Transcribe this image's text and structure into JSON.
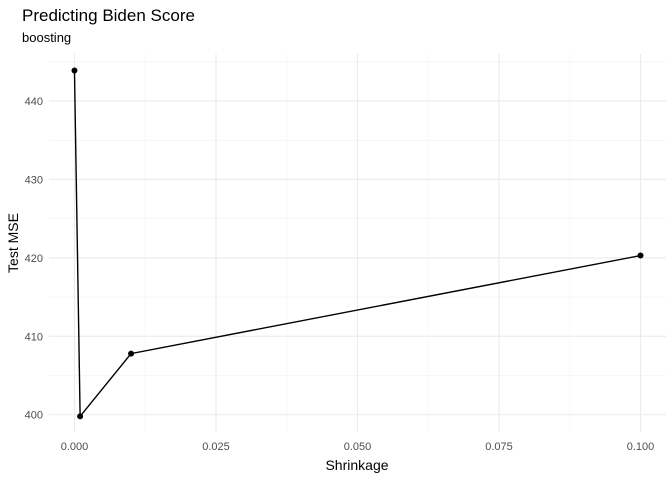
{
  "chart_data": {
    "type": "line",
    "title": "Predicting Biden Score",
    "subtitle": "boosting",
    "xlabel": "Shrinkage",
    "ylabel": "Test MSE",
    "xlim": [
      -0.0045,
      0.1045
    ],
    "ylim": [
      397.8,
      446.0
    ],
    "x_ticks": [
      0.0,
      0.025,
      0.05,
      0.075,
      0.1
    ],
    "x_tick_labels": [
      "0.000",
      "0.025",
      "0.050",
      "0.075",
      "0.100"
    ],
    "y_ticks": [
      400,
      410,
      420,
      430,
      440
    ],
    "y_tick_labels": [
      "400",
      "410",
      "420",
      "430",
      "440"
    ],
    "grid": true,
    "legend": "none",
    "line_color": "#000000",
    "series": [
      {
        "x": [
          0.0,
          0.001,
          0.01,
          0.1
        ],
        "y": [
          443.9,
          399.8,
          407.8,
          420.3
        ]
      }
    ]
  }
}
